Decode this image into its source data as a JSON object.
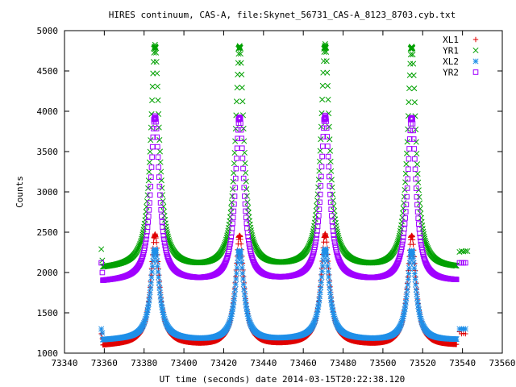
{
  "chart_data": {
    "type": "scatter",
    "title": "HIRES continuum, CAS-A, file:Skynet_56731_CAS-A_8123_8703.cyb.txt",
    "xlabel": "UT time (seconds) date 2014-03-15T20:22:38.120",
    "ylabel": "Counts",
    "xlim": [
      73340,
      73560
    ],
    "ylim": [
      1000,
      5000
    ],
    "x_ticks": [
      "73340",
      "73360",
      "73380",
      "73400",
      "73420",
      "73440",
      "73460",
      "73480",
      "73500",
      "73520",
      "73540",
      "73560"
    ],
    "y_ticks": [
      "1000",
      "1500",
      "2000",
      "2500",
      "3000",
      "3500",
      "4000",
      "4500",
      "5000"
    ],
    "legend_position": "top-right",
    "grid": false,
    "peaks_x": [
      73385.5,
      73428,
      73471,
      73514.5
    ],
    "main_scan_x_range": [
      73359,
      73537
    ],
    "tail_x_range": [
      73538,
      73542.5
    ],
    "series": [
      {
        "name": "XL1",
        "color": "#e00000",
        "marker": "plus",
        "baseline": 1085,
        "peak": 2460,
        "start_points": [
          [
            73358.5,
            1240
          ],
          [
            73359,
            1180
          ]
        ],
        "tail_points": [
          [
            73538.5,
            1265
          ],
          [
            73539.5,
            1240
          ],
          [
            73540.5,
            1245
          ],
          [
            73541.5,
            1240
          ]
        ]
      },
      {
        "name": "YR1",
        "color": "#00a000",
        "marker": "cross",
        "baseline": 2040,
        "peak": 4800,
        "start_points": [
          [
            73358.5,
            2290
          ],
          [
            73359,
            2150
          ]
        ],
        "tail_points": [
          [
            73538.5,
            2255
          ],
          [
            73539.5,
            2265
          ],
          [
            73540.5,
            2260
          ],
          [
            73541.5,
            2265
          ],
          [
            73542.5,
            2265
          ]
        ]
      },
      {
        "name": "XL2",
        "color": "#1f8fe8",
        "marker": "star",
        "baseline": 1155,
        "peak": 2270,
        "start_points": [
          [
            73358.5,
            1300
          ],
          [
            73359,
            1250
          ]
        ],
        "tail_points": [
          [
            73538.5,
            1300
          ],
          [
            73539.5,
            1300
          ],
          [
            73540.5,
            1300
          ],
          [
            73541.5,
            1300
          ]
        ]
      },
      {
        "name": "YR2",
        "color": "#a000ff",
        "marker": "square",
        "baseline": 1880,
        "peak": 3920,
        "start_points": [
          [
            73358.5,
            2120
          ],
          [
            73359,
            2000
          ]
        ],
        "tail_points": [
          [
            73538.5,
            2120
          ],
          [
            73539.5,
            2120
          ],
          [
            73540.5,
            2120
          ],
          [
            73541.5,
            2120
          ]
        ]
      }
    ]
  }
}
